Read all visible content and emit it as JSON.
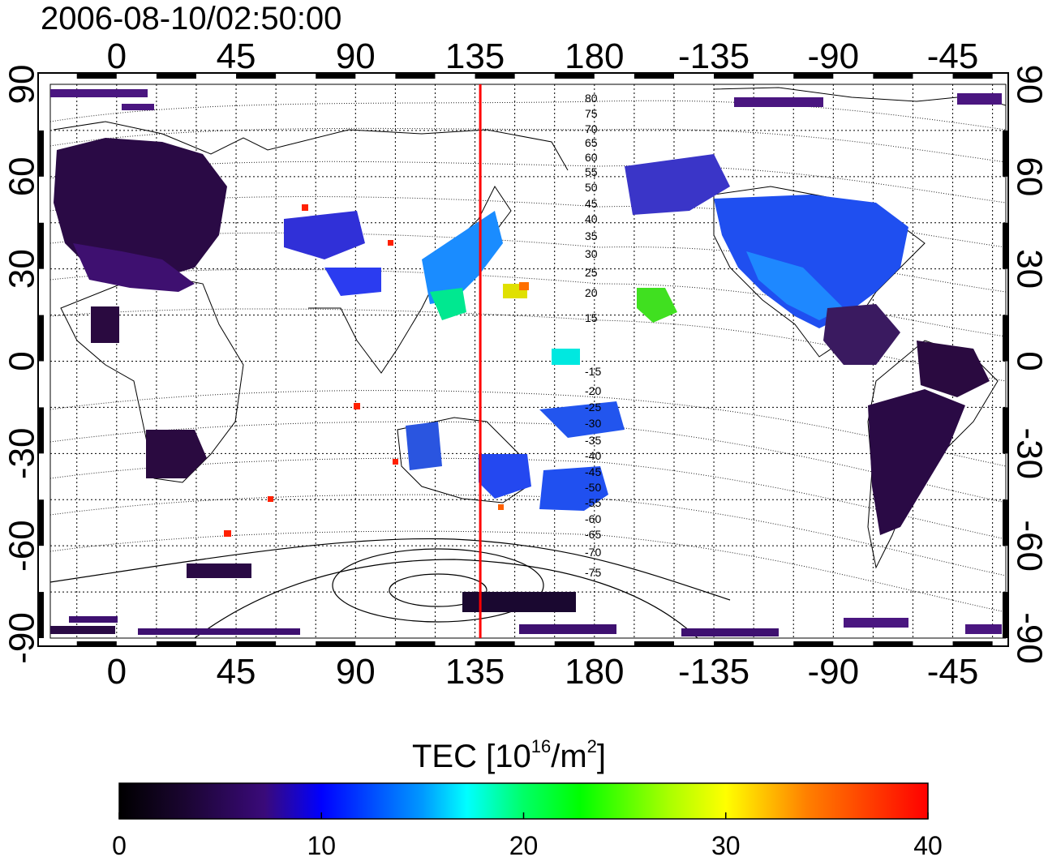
{
  "title": "2006-08-10/02:50:00",
  "map": {
    "lon_ticks_top": [
      "0",
      "45",
      "90",
      "135",
      "180",
      "-135",
      "-90",
      "-45"
    ],
    "lon_ticks_bottom": [
      "0",
      "45",
      "90",
      "135",
      "180",
      "-135",
      "-90",
      "-45"
    ],
    "lat_ticks_left": [
      "90",
      "60",
      "30",
      "0",
      "-30",
      "-60",
      "-90"
    ],
    "lat_ticks_right": [
      "90",
      "60",
      "30",
      "0",
      "-30",
      "-60",
      "-90"
    ],
    "lon_range": [
      -25,
      335
    ],
    "lat_range": [
      -90,
      90
    ],
    "grid": true,
    "meridian_marker_lon": 137,
    "meridian_marker_color": "#ff0000",
    "magnetic_latitude_labels": [
      "80",
      "75",
      "70",
      "65",
      "60",
      "55",
      "50",
      "45",
      "40",
      "35",
      "30",
      "25",
      "20",
      "15",
      "-15",
      "-20",
      "-25",
      "-30",
      "-35",
      "-40",
      "-45",
      "-50",
      "-55",
      "-60",
      "-65",
      "-70",
      "-75"
    ]
  },
  "colorbar": {
    "label_prefix": "TEC  [10",
    "label_sup1": "16",
    "label_mid": "/m",
    "label_sup2": "2",
    "label_suffix": "]",
    "ticks": [
      "0",
      "10",
      "20",
      "30",
      "40"
    ],
    "range": [
      0,
      40
    ],
    "colors": [
      "#000000",
      "#3a0a6e",
      "#0000ff",
      "#00ffff",
      "#00ff00",
      "#ffff00",
      "#ff8000",
      "#ff0000"
    ]
  }
}
